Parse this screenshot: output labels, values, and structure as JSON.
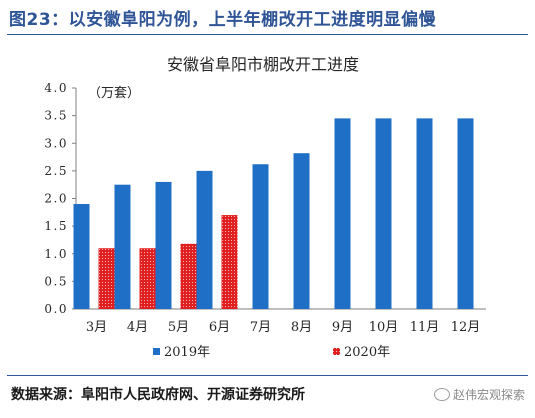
{
  "figure_title": "图23：以安徽阜阳为例，上半年棚改开工进度明显偏慢",
  "source": "数据来源：阜阳市人民政府网、开源证券研究所",
  "watermark": "赵伟宏观探索",
  "watermark_icon": "wechat-icon",
  "colors": {
    "accent": "#2f5597",
    "series_2019": "#1f6fc6",
    "series_2020": "#e02020"
  },
  "chart_data": {
    "type": "bar",
    "title": "安徽省阜阳市棚改开工进度",
    "unit_label": "（万套）",
    "categories": [
      "3月",
      "4月",
      "5月",
      "6月",
      "7月",
      "8月",
      "9月",
      "10月",
      "11月",
      "12月"
    ],
    "series": [
      {
        "name": "2019年",
        "values": [
          1.9,
          2.25,
          2.3,
          2.5,
          2.62,
          2.82,
          3.45,
          3.45,
          3.45,
          3.45
        ]
      },
      {
        "name": "2020年",
        "values": [
          1.1,
          1.1,
          1.18,
          1.7,
          null,
          null,
          null,
          null,
          null,
          null
        ]
      }
    ],
    "ylim": [
      0,
      4
    ],
    "yticks": [
      "0.0",
      "0.5",
      "1.0",
      "1.5",
      "2.0",
      "2.5",
      "3.0",
      "3.5",
      "4.0"
    ],
    "grid": false,
    "legend": "bottom"
  }
}
